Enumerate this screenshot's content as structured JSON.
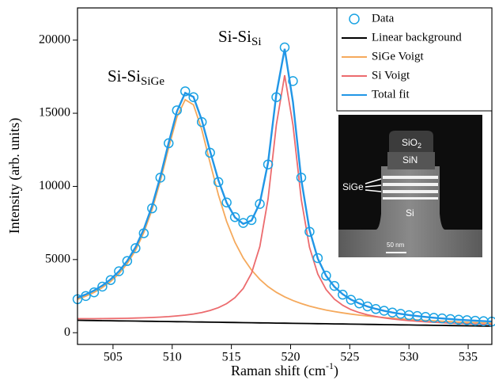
{
  "chart_data": {
    "type": "line",
    "xlabel": [
      "Raman shift (cm",
      "-1",
      ")"
    ],
    "ylabel": "Intensity (arb. units)",
    "annotations": [
      {
        "text": "Si-Si",
        "sub": "SiGe"
      },
      {
        "text": "Si-Si",
        "sub": "Si"
      }
    ],
    "xlim": [
      502,
      537
    ],
    "ylim": [
      -800,
      22200
    ],
    "xticks": [
      505,
      510,
      515,
      520,
      525,
      530,
      535
    ],
    "yticks": [
      0,
      5000,
      10000,
      15000,
      20000
    ],
    "legend": "upper right",
    "x": [
      502.0,
      502.7,
      503.4,
      504.1,
      504.8,
      505.5,
      506.2,
      506.9,
      507.6,
      508.3,
      509.0,
      509.7,
      510.4,
      511.1,
      511.8,
      512.5,
      513.2,
      513.9,
      514.6,
      515.3,
      516.0,
      516.7,
      517.4,
      518.1,
      518.8,
      519.5,
      520.2,
      520.9,
      521.6,
      522.3,
      523.0,
      523.7,
      524.4,
      525.1,
      525.8,
      526.5,
      527.2,
      527.9,
      528.6,
      529.3,
      530.0,
      530.7,
      531.4,
      532.1,
      532.8,
      533.5,
      534.2,
      534.9,
      535.6,
      536.3,
      537.0
    ],
    "series": [
      {
        "name": "Data",
        "color": "#1aa3e3",
        "marker": "circle",
        "values": [
          2290,
          2510,
          2760,
          3150,
          3600,
          4200,
          4900,
          5780,
          6800,
          8500,
          10600,
          12950,
          15200,
          16500,
          16100,
          14400,
          12300,
          10300,
          8900,
          7900,
          7500,
          7700,
          8800,
          11500,
          16100,
          19500,
          17200,
          10600,
          6900,
          5100,
          3900,
          3200,
          2600,
          2250,
          2000,
          1800,
          1620,
          1500,
          1380,
          1290,
          1200,
          1140,
          1080,
          1020,
          980,
          930,
          890,
          860,
          820,
          790,
          760
        ]
      },
      {
        "name": "Linear background",
        "color": "#000000",
        "marker": "line",
        "values": [
          850,
          842,
          834,
          826,
          818,
          810,
          802,
          794,
          786,
          778,
          770,
          762,
          754,
          746,
          738,
          730,
          722,
          714,
          706,
          698,
          690,
          682,
          674,
          666,
          658,
          650,
          642,
          634,
          626,
          618,
          610,
          602,
          594,
          586,
          578,
          570,
          562,
          554,
          546,
          538,
          530,
          522,
          514,
          506,
          498,
          490,
          482,
          474,
          466,
          458,
          450
        ]
      },
      {
        "name": "SiGe Voigt",
        "color": "#f5a95c",
        "marker": "line",
        "values": [
          2287,
          2496,
          2757,
          3082,
          3498,
          4027,
          4722,
          5635,
          6835,
          8403,
          10373,
          12639,
          14745,
          15929,
          15576,
          13877,
          11607,
          9423,
          7606,
          6188,
          5105,
          4279,
          3644,
          3151,
          2761,
          2450,
          2198,
          1991,
          1818,
          1674,
          1551,
          1445,
          1354,
          1274,
          1204,
          1142,
          1086,
          1036,
          991,
          950,
          913,
          878,
          846,
          817,
          789,
          763,
          739,
          717,
          695,
          674,
          655
        ]
      },
      {
        "name": "Si Voigt",
        "color": "#ec6b6e",
        "marker": "line",
        "values": [
          958,
          959,
          961,
          965,
          970,
          978,
          988,
          1001,
          1017,
          1039,
          1066,
          1101,
          1146,
          1204,
          1280,
          1382,
          1520,
          1711,
          1985,
          2393,
          3028,
          4072,
          5889,
          9141,
          14218,
          17600,
          14202,
          9109,
          5841,
          4008,
          2948,
          2297,
          1873,
          1583,
          1376,
          1222,
          1104,
          1012,
          938,
          877,
          826,
          783,
          745,
          713,
          684,
          658,
          634,
          613,
          593,
          575,
          558
        ]
      },
      {
        "name": "Total fit",
        "color": "#2196e6",
        "marker": "line",
        "values": [
          2395,
          2613,
          2884,
          3221,
          3650,
          4195,
          4908,
          5842,
          7066,
          8664,
          10669,
          12978,
          15137,
          16387,
          16118,
          14529,
          12405,
          10420,
          8885,
          7883,
          7443,
          7669,
          8859,
          11626,
          16321,
          19400,
          15758,
          10466,
          7033,
          5064,
          3889,
          3140,
          2633,
          2271,
          2002,
          1794,
          1628,
          1494,
          1383,
          1289,
          1209,
          1139,
          1077,
          1024,
          975,
          931,
          891,
          856,
          822,
          791,
          763
        ]
      }
    ],
    "inset_labels": [
      {
        "text": "SiO",
        "sub": "2"
      },
      {
        "text": "SiN"
      },
      {
        "text": "SiGe"
      },
      {
        "text": "Si"
      },
      {
        "text": "50 nm"
      }
    ]
  }
}
